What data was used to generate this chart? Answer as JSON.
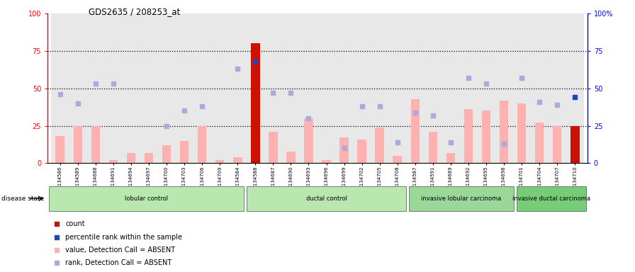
{
  "title": "GDS2635 / 208253_at",
  "samples": [
    "GSM134586",
    "GSM134589",
    "GSM134688",
    "GSM134691",
    "GSM134694",
    "GSM134697",
    "GSM134700",
    "GSM134703",
    "GSM134706",
    "GSM134709",
    "GSM134584",
    "GSM134588",
    "GSM134687",
    "GSM134690",
    "GSM134693",
    "GSM134696",
    "GSM134699",
    "GSM134702",
    "GSM134705",
    "GSM134708",
    "GSM134587",
    "GSM134591",
    "GSM134689",
    "GSM134692",
    "GSM134695",
    "GSM134698",
    "GSM134701",
    "GSM134704",
    "GSM134707",
    "GSM134710"
  ],
  "bar_values": [
    18,
    25,
    25,
    2,
    7,
    7,
    12,
    15,
    25,
    2,
    4,
    80,
    21,
    8,
    30,
    2,
    17,
    16,
    24,
    5,
    43,
    21,
    7,
    36,
    35,
    42,
    40,
    27,
    25,
    25
  ],
  "bar_colors": [
    "#ffb0b0",
    "#ffb0b0",
    "#ffb0b0",
    "#ffb0b0",
    "#ffb0b0",
    "#ffb0b0",
    "#ffb0b0",
    "#ffb0b0",
    "#ffb0b0",
    "#ffb0b0",
    "#ffb0b0",
    "#cc1100",
    "#ffb0b0",
    "#ffb0b0",
    "#ffb0b0",
    "#ffb0b0",
    "#ffb0b0",
    "#ffb0b0",
    "#ffb0b0",
    "#ffb0b0",
    "#ffb0b0",
    "#ffb0b0",
    "#ffb0b0",
    "#ffb0b0",
    "#ffb0b0",
    "#ffb0b0",
    "#ffb0b0",
    "#ffb0b0",
    "#ffb0b0",
    "#cc1100"
  ],
  "rank_values": [
    46,
    40,
    53,
    53,
    null,
    null,
    25,
    35,
    38,
    null,
    63,
    68,
    47,
    47,
    30,
    null,
    10,
    38,
    38,
    14,
    34,
    32,
    14,
    57,
    53,
    13,
    57,
    41,
    39,
    44
  ],
  "rank_is_percentile": [
    false,
    false,
    false,
    false,
    false,
    false,
    false,
    false,
    false,
    false,
    false,
    true,
    false,
    false,
    false,
    false,
    false,
    false,
    false,
    false,
    false,
    false,
    false,
    false,
    false,
    false,
    false,
    false,
    false,
    true
  ],
  "groups": [
    {
      "label": "lobular control",
      "start": 0,
      "end": 11
    },
    {
      "label": "ductal control",
      "start": 11,
      "end": 20
    },
    {
      "label": "invasive lobular carcinoma",
      "start": 20,
      "end": 26
    },
    {
      "label": "invasive ductal carcinoma",
      "start": 26,
      "end": 30
    }
  ],
  "group_colors": [
    "#b8e8b0",
    "#b8e8b0",
    "#99d899",
    "#77cc77"
  ],
  "dotted_lines": [
    25,
    50,
    75
  ],
  "bar_width": 0.5,
  "rank_color": "#aaaadd",
  "percentile_color": "#2244bb",
  "legend_items": [
    {
      "label": "count",
      "color": "#cc1100"
    },
    {
      "label": "percentile rank within the sample",
      "color": "#2244bb"
    },
    {
      "label": "value, Detection Call = ABSENT",
      "color": "#ffb0b0"
    },
    {
      "label": "rank, Detection Call = ABSENT",
      "color": "#aaaadd"
    }
  ]
}
